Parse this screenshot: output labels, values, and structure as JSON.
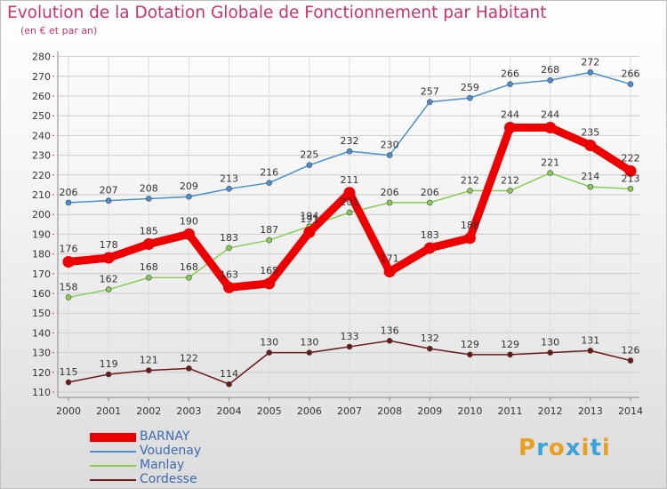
{
  "title": "Evolution de la Dotation Globale de Fonctionnement par Habitant",
  "subtitle": "(en € et par an)",
  "logo": {
    "text": "Proxiti",
    "colors": [
      "#e8a020",
      "#3aa3d8",
      "#e8a020",
      "#3aa3d8",
      "#e8a020",
      "#3aa3d8",
      "#e8a020"
    ]
  },
  "colors": {
    "title": "#cc3366",
    "legend_text": "#3d6bb0"
  },
  "chart_data": {
    "type": "line",
    "title": "Evolution de la Dotation Globale de Fonctionnement par Habitant",
    "subtitle": "(en € et par an)",
    "xlabel": "",
    "ylabel": "",
    "x": [
      "2000",
      "2001",
      "2002",
      "2003",
      "2004",
      "2005",
      "2006",
      "2007",
      "2008",
      "2009",
      "2010",
      "2011",
      "2012",
      "2013",
      "2014"
    ],
    "ylim": [
      110,
      280
    ],
    "yticks": [
      110,
      120,
      130,
      140,
      150,
      160,
      170,
      180,
      190,
      200,
      210,
      220,
      230,
      240,
      250,
      260,
      270,
      280
    ],
    "grid": true,
    "legend_position": "bottom-left",
    "series": [
      {
        "name": "BARNAY",
        "color": "#ee0000",
        "values": [
          176,
          178,
          185,
          190,
          163,
          165,
          191,
          211,
          171,
          183,
          188,
          244,
          244,
          235,
          222
        ]
      },
      {
        "name": "Voudenay",
        "color": "#4a90d0",
        "values": [
          206,
          207,
          208,
          209,
          213,
          216,
          225,
          232,
          230,
          257,
          259,
          266,
          268,
          272,
          266
        ]
      },
      {
        "name": "Manlay",
        "color": "#88cc55",
        "values": [
          158,
          162,
          168,
          168,
          183,
          187,
          194,
          201,
          206,
          206,
          212,
          212,
          221,
          214,
          213
        ]
      },
      {
        "name": "Cordesse",
        "color": "#6b1a1a",
        "values": [
          115,
          119,
          121,
          122,
          114,
          130,
          130,
          133,
          136,
          132,
          129,
          129,
          130,
          131,
          126
        ]
      }
    ]
  }
}
